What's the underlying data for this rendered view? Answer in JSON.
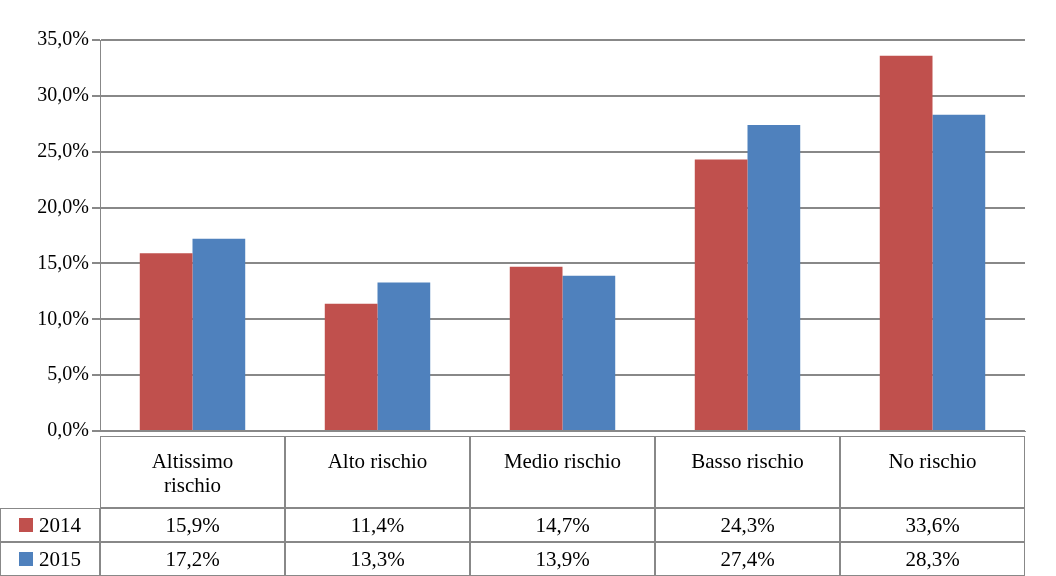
{
  "chart_data": {
    "type": "bar",
    "categories": [
      "Altissimo rischio",
      "Alto rischio",
      "Medio rischio",
      "Basso rischio",
      "No rischio"
    ],
    "series": [
      {
        "name": "2014",
        "color": "#c0504d",
        "values": [
          15.9,
          11.4,
          14.7,
          24.3,
          33.6
        ],
        "value_labels": [
          "15,9%",
          "11,4%",
          "14,7%",
          "24,3%",
          "33,6%"
        ]
      },
      {
        "name": "2015",
        "color": "#4f81bd",
        "values": [
          17.2,
          13.3,
          13.9,
          27.4,
          28.3
        ],
        "value_labels": [
          "17,2%",
          "13,3%",
          "13,9%",
          "27,4%",
          "28,3%"
        ]
      }
    ],
    "ylim": [
      0,
      35
    ],
    "yticks": [
      {
        "value": 0,
        "label": "0,0%"
      },
      {
        "value": 5,
        "label": "5,0%"
      },
      {
        "value": 10,
        "label": "10,0%"
      },
      {
        "value": 15,
        "label": "15,0%"
      },
      {
        "value": 20,
        "label": "20,0%"
      },
      {
        "value": 25,
        "label": "25,0%"
      },
      {
        "value": 30,
        "label": "30,0%"
      },
      {
        "value": 35,
        "label": "35,0%"
      }
    ],
    "grid": "y",
    "legend": "bottom left"
  }
}
